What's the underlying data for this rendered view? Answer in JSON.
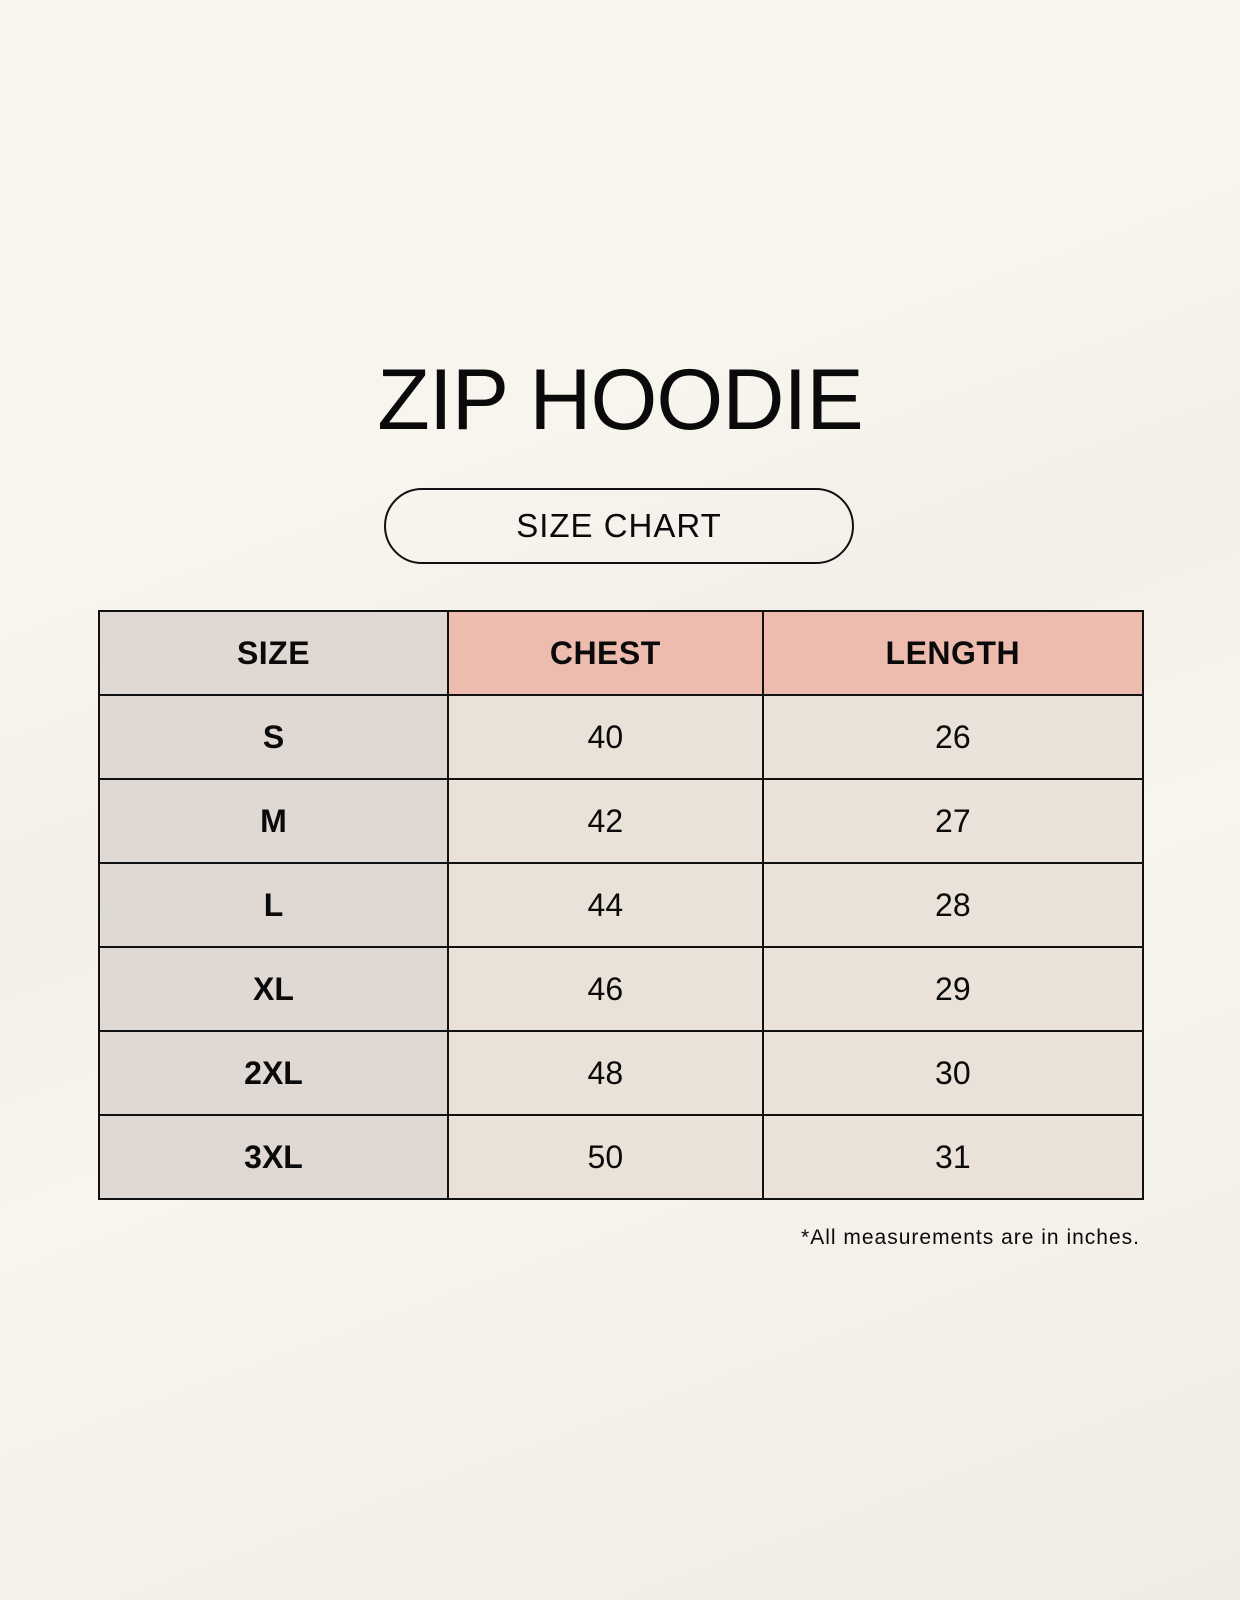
{
  "title": "ZIP HOODIE",
  "subtitle": "SIZE CHART",
  "table": {
    "headers": [
      "SIZE",
      "CHEST",
      "LENGTH"
    ],
    "rows": [
      [
        "S",
        "40",
        "26"
      ],
      [
        "M",
        "42",
        "27"
      ],
      [
        "L",
        "44",
        "28"
      ],
      [
        "XL",
        "46",
        "29"
      ],
      [
        "2XL",
        "48",
        "30"
      ],
      [
        "3XL",
        "50",
        "31"
      ]
    ]
  },
  "footnote": "*All measurements are in inches.",
  "colors": {
    "size_column": "#e0d8d3",
    "header_accent": "#edbcaf",
    "cell": "#eae2d8"
  }
}
